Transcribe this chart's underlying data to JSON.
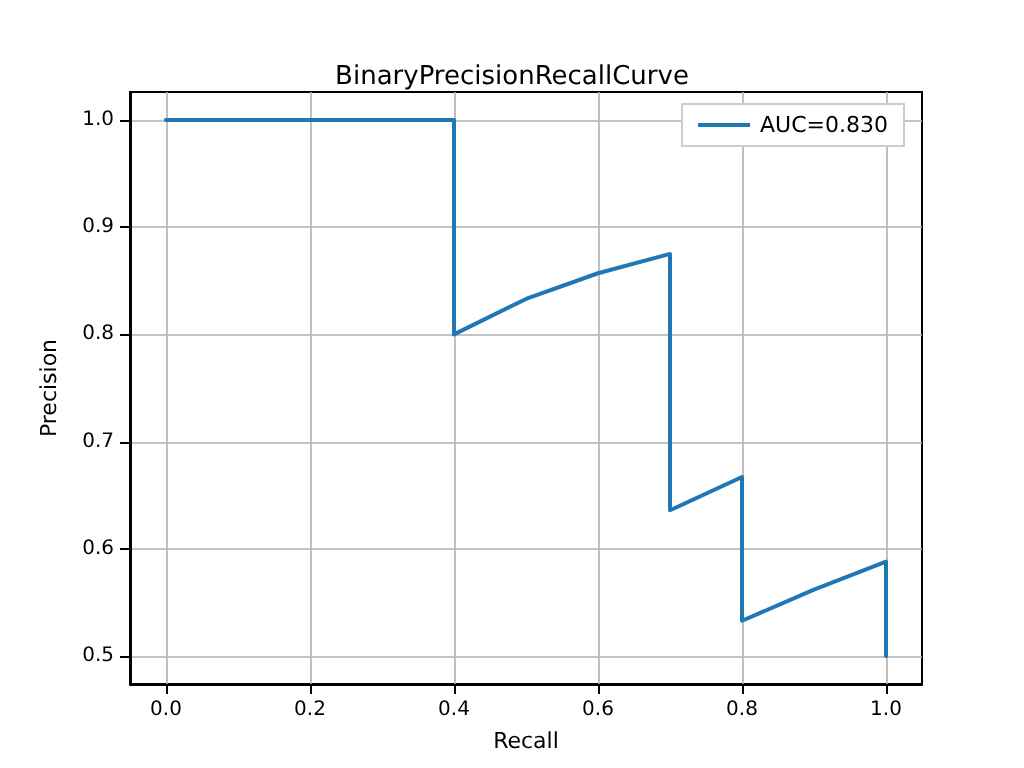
{
  "chart_data": {
    "type": "line",
    "title": "BinaryPrecisionRecallCurve",
    "xlabel": "Recall",
    "ylabel": "Precision",
    "series": [
      {
        "name": "AUC=0.830",
        "color": "#1f77b4",
        "x": [
          0,
          0.4,
          0.4,
          0.5,
          0.6,
          0.7,
          0.7,
          0.8,
          0.8,
          0.9,
          1.0,
          1.0
        ],
        "values": [
          1.0,
          1.0,
          0.8,
          0.833,
          0.857,
          0.875,
          0.636,
          0.667,
          0.533,
          0.562,
          0.588,
          0.5
        ]
      }
    ],
    "xlim": [
      -0.05,
      1.05
    ],
    "ylim": [
      0.474,
      1.026
    ],
    "xticks": [
      {
        "value": 0,
        "label": "0.0"
      },
      {
        "value": 0.2,
        "label": "0.2"
      },
      {
        "value": 0.4,
        "label": "0.4"
      },
      {
        "value": 0.6,
        "label": "0.6"
      },
      {
        "value": 0.8,
        "label": "0.8"
      },
      {
        "value": 1.0,
        "label": "1.0"
      }
    ],
    "yticks": [
      {
        "value": 0.5,
        "label": "0.5"
      },
      {
        "value": 0.6,
        "label": "0.6"
      },
      {
        "value": 0.7,
        "label": "0.7"
      },
      {
        "value": 0.8,
        "label": "0.8"
      },
      {
        "value": 0.9,
        "label": "0.9"
      },
      {
        "value": 1.0,
        "label": "1.0"
      }
    ],
    "grid": true,
    "legend": "top right",
    "marker": "none",
    "line_style": "solid"
  }
}
